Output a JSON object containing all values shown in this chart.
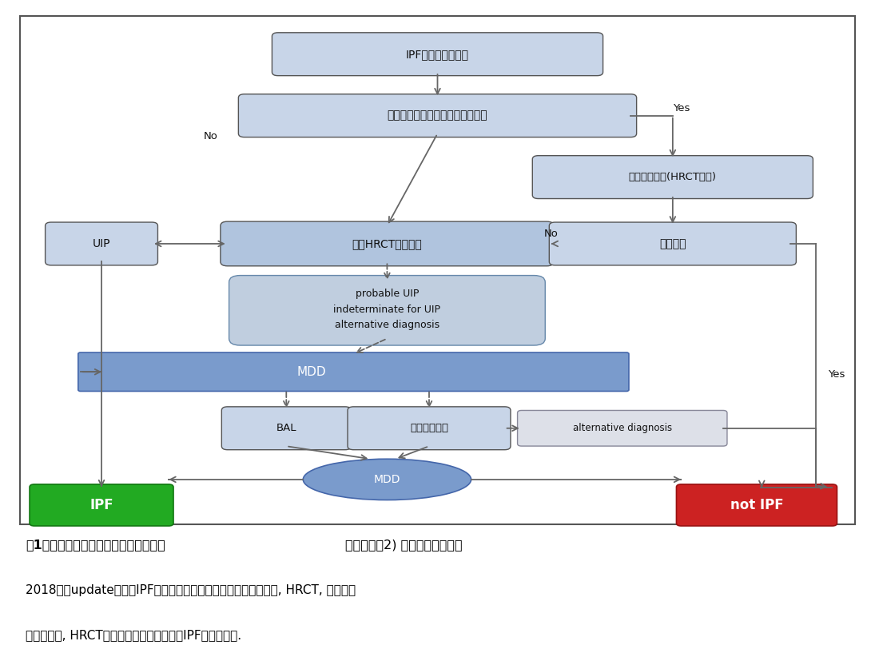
{
  "fig_width": 10.95,
  "fig_height": 8.22,
  "bg_color": "#ffffff",
  "border_color": "#555555",
  "lb": "#c8d5e8",
  "lb2": "#b0c4de",
  "mblue": "#7090c0",
  "mdd_fill": "#7090c0",
  "alt_fill": "#d8dde8",
  "green_fill": "#22aa22",
  "red_fill": "#cc2222",
  "arrow_color": "#666666",
  "texts": {
    "box1": "IPFが疑われる患者",
    "box2": "可能性のある原因／関連する状況",
    "box3": "さらなる評価(HRCT含む)",
    "box4": "胸部HRCTパターン",
    "uip": "UIP",
    "box5": "確定診断",
    "box6a": "probable UIP",
    "box6b": "indeterminate for UIP",
    "box6c": "alternative diagnosis",
    "mdd_top": "MDD",
    "bal": "BAL",
    "surg": "外科的肺生検",
    "alt": "alternative diagnosis",
    "mdd_bot": "MDD",
    "ipf": "IPF",
    "notipf": "not IPF",
    "no1": "No",
    "yes1": "Yes",
    "no2": "No",
    "yes2": "Yes",
    "cap1a": "図1　間質性肺疾患の診断アルゴリズム",
    "cap1b": "【参考文献2) を基に筆者作成】",
    "cap2": "2018年にupdateされたIPFの診断に関するガイドラインにおける, HRCT, 病理組織",
    "cap3": "パターンと, HRCTと生検パターンに基づくIPF診断を示す."
  }
}
